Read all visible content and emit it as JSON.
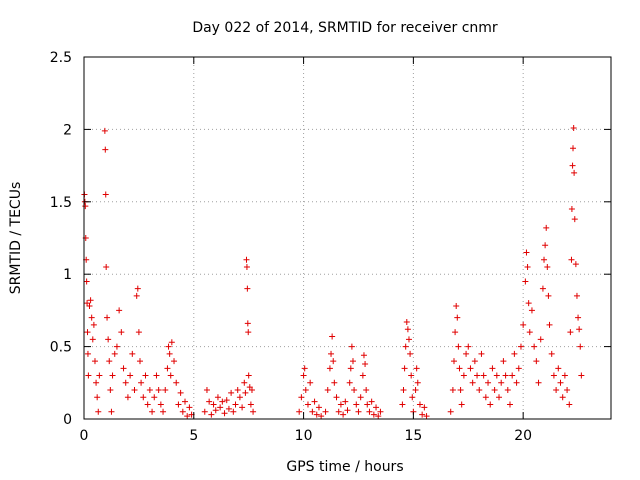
{
  "chart_data": {
    "type": "scatter",
    "title": "Day 022 of 2014, SRMTID for receiver cnmr",
    "xlabel": "GPS time / hours",
    "ylabel": "SRMTID / TECUs",
    "xlim": [
      0,
      24
    ],
    "ylim": [
      0,
      2.5
    ],
    "xticks": [
      0,
      5,
      10,
      15,
      20
    ],
    "yticks": [
      0,
      0.5,
      1,
      1.5,
      2,
      2.5
    ],
    "xtick_labels": [
      "0",
      "5",
      "10",
      "15",
      "20"
    ],
    "ytick_labels": [
      "0",
      "0.5",
      "1",
      "1.5",
      "2",
      "2.5"
    ],
    "grid": true,
    "marker": "+",
    "color": "#e00000",
    "series": [
      {
        "name": "SRMTID",
        "points": [
          [
            0.02,
            1.55
          ],
          [
            0.04,
            1.5
          ],
          [
            0.06,
            1.47
          ],
          [
            0.08,
            1.25
          ],
          [
            0.1,
            1.1
          ],
          [
            0.12,
            0.95
          ],
          [
            0.14,
            0.8
          ],
          [
            0.16,
            0.6
          ],
          [
            0.18,
            0.45
          ],
          [
            0.2,
            0.3
          ],
          [
            0.25,
            0.78
          ],
          [
            0.3,
            0.82
          ],
          [
            0.35,
            0.7
          ],
          [
            0.4,
            0.55
          ],
          [
            0.45,
            0.65
          ],
          [
            0.5,
            0.4
          ],
          [
            0.55,
            0.25
          ],
          [
            0.6,
            0.15
          ],
          [
            0.65,
            0.05
          ],
          [
            0.7,
            0.3
          ],
          [
            0.95,
            1.99
          ],
          [
            0.97,
            1.86
          ],
          [
            0.99,
            1.55
          ],
          [
            1.01,
            1.05
          ],
          [
            1.05,
            0.7
          ],
          [
            1.1,
            0.55
          ],
          [
            1.15,
            0.4
          ],
          [
            1.2,
            0.2
          ],
          [
            1.25,
            0.05
          ],
          [
            1.3,
            0.3
          ],
          [
            1.4,
            0.45
          ],
          [
            1.5,
            0.5
          ],
          [
            1.6,
            0.75
          ],
          [
            1.7,
            0.6
          ],
          [
            1.8,
            0.35
          ],
          [
            1.9,
            0.25
          ],
          [
            2.0,
            0.15
          ],
          [
            2.1,
            0.3
          ],
          [
            2.2,
            0.45
          ],
          [
            2.3,
            0.2
          ],
          [
            2.4,
            0.85
          ],
          [
            2.45,
            0.9
          ],
          [
            2.5,
            0.6
          ],
          [
            2.55,
            0.4
          ],
          [
            2.6,
            0.25
          ],
          [
            2.7,
            0.15
          ],
          [
            2.8,
            0.3
          ],
          [
            2.9,
            0.1
          ],
          [
            3.0,
            0.2
          ],
          [
            3.1,
            0.05
          ],
          [
            3.2,
            0.15
          ],
          [
            3.3,
            0.3
          ],
          [
            3.4,
            0.2
          ],
          [
            3.5,
            0.1
          ],
          [
            3.6,
            0.05
          ],
          [
            3.7,
            0.2
          ],
          [
            3.8,
            0.35
          ],
          [
            3.85,
            0.5
          ],
          [
            3.9,
            0.45
          ],
          [
            3.95,
            0.3
          ],
          [
            4.0,
            0.53
          ],
          [
            4.1,
            0.4
          ],
          [
            4.2,
            0.25
          ],
          [
            4.3,
            0.1
          ],
          [
            4.4,
            0.18
          ],
          [
            4.5,
            0.05
          ],
          [
            4.6,
            0.12
          ],
          [
            4.7,
            0.02
          ],
          [
            4.8,
            0.08
          ],
          [
            4.9,
            0.03
          ],
          [
            5.5,
            0.05
          ],
          [
            5.6,
            0.2
          ],
          [
            5.7,
            0.12
          ],
          [
            5.8,
            0.03
          ],
          [
            5.9,
            0.1
          ],
          [
            6.0,
            0.06
          ],
          [
            6.1,
            0.15
          ],
          [
            6.2,
            0.08
          ],
          [
            6.3,
            0.12
          ],
          [
            6.4,
            0.04
          ],
          [
            6.5,
            0.13
          ],
          [
            6.6,
            0.07
          ],
          [
            6.7,
            0.18
          ],
          [
            6.8,
            0.05
          ],
          [
            6.9,
            0.1
          ],
          [
            7.0,
            0.2
          ],
          [
            7.1,
            0.15
          ],
          [
            7.2,
            0.08
          ],
          [
            7.3,
            0.25
          ],
          [
            7.35,
            0.18
          ],
          [
            7.4,
            1.1
          ],
          [
            7.42,
            1.05
          ],
          [
            7.44,
            0.9
          ],
          [
            7.46,
            0.66
          ],
          [
            7.48,
            0.6
          ],
          [
            7.5,
            0.3
          ],
          [
            7.55,
            0.22
          ],
          [
            7.6,
            0.1
          ],
          [
            7.65,
            0.2
          ],
          [
            7.7,
            0.05
          ],
          [
            9.8,
            0.05
          ],
          [
            9.9,
            0.15
          ],
          [
            10.0,
            0.3
          ],
          [
            10.05,
            0.35
          ],
          [
            10.1,
            0.2
          ],
          [
            10.2,
            0.1
          ],
          [
            10.3,
            0.25
          ],
          [
            10.4,
            0.05
          ],
          [
            10.5,
            0.12
          ],
          [
            10.6,
            0.03
          ],
          [
            10.7,
            0.08
          ],
          [
            10.8,
            0.02
          ],
          [
            11.0,
            0.05
          ],
          [
            11.1,
            0.2
          ],
          [
            11.2,
            0.35
          ],
          [
            11.25,
            0.45
          ],
          [
            11.3,
            0.57
          ],
          [
            11.35,
            0.4
          ],
          [
            11.4,
            0.25
          ],
          [
            11.5,
            0.15
          ],
          [
            11.6,
            0.05
          ],
          [
            11.7,
            0.1
          ],
          [
            11.8,
            0.03
          ],
          [
            11.9,
            0.12
          ],
          [
            12.0,
            0.06
          ],
          [
            12.1,
            0.25
          ],
          [
            12.15,
            0.35
          ],
          [
            12.2,
            0.5
          ],
          [
            12.25,
            0.4
          ],
          [
            12.3,
            0.2
          ],
          [
            12.4,
            0.1
          ],
          [
            12.5,
            0.05
          ],
          [
            12.6,
            0.15
          ],
          [
            12.7,
            0.3
          ],
          [
            12.75,
            0.44
          ],
          [
            12.8,
            0.38
          ],
          [
            12.85,
            0.2
          ],
          [
            12.9,
            0.1
          ],
          [
            13.0,
            0.05
          ],
          [
            13.1,
            0.12
          ],
          [
            13.2,
            0.03
          ],
          [
            13.3,
            0.08
          ],
          [
            13.4,
            0.02
          ],
          [
            13.5,
            0.05
          ],
          [
            14.5,
            0.1
          ],
          [
            14.55,
            0.2
          ],
          [
            14.6,
            0.35
          ],
          [
            14.65,
            0.5
          ],
          [
            14.7,
            0.67
          ],
          [
            14.75,
            0.62
          ],
          [
            14.8,
            0.55
          ],
          [
            14.85,
            0.45
          ],
          [
            14.9,
            0.3
          ],
          [
            14.95,
            0.15
          ],
          [
            15.0,
            0.05
          ],
          [
            15.1,
            0.2
          ],
          [
            15.15,
            0.35
          ],
          [
            15.2,
            0.25
          ],
          [
            15.3,
            0.1
          ],
          [
            15.4,
            0.03
          ],
          [
            15.5,
            0.08
          ],
          [
            15.6,
            0.02
          ],
          [
            16.7,
            0.05
          ],
          [
            16.8,
            0.2
          ],
          [
            16.85,
            0.4
          ],
          [
            16.9,
            0.6
          ],
          [
            16.95,
            0.78
          ],
          [
            17.0,
            0.7
          ],
          [
            17.05,
            0.5
          ],
          [
            17.1,
            0.35
          ],
          [
            17.15,
            0.2
          ],
          [
            17.2,
            0.1
          ],
          [
            17.3,
            0.3
          ],
          [
            17.4,
            0.45
          ],
          [
            17.5,
            0.5
          ],
          [
            17.6,
            0.35
          ],
          [
            17.7,
            0.25
          ],
          [
            17.8,
            0.4
          ],
          [
            17.9,
            0.3
          ],
          [
            18.0,
            0.2
          ],
          [
            18.1,
            0.45
          ],
          [
            18.2,
            0.3
          ],
          [
            18.3,
            0.15
          ],
          [
            18.4,
            0.25
          ],
          [
            18.5,
            0.1
          ],
          [
            18.6,
            0.35
          ],
          [
            18.7,
            0.2
          ],
          [
            18.8,
            0.3
          ],
          [
            18.9,
            0.15
          ],
          [
            19.0,
            0.25
          ],
          [
            19.1,
            0.4
          ],
          [
            19.2,
            0.3
          ],
          [
            19.3,
            0.2
          ],
          [
            19.4,
            0.1
          ],
          [
            19.5,
            0.3
          ],
          [
            19.6,
            0.45
          ],
          [
            19.7,
            0.25
          ],
          [
            19.8,
            0.35
          ],
          [
            19.9,
            0.5
          ],
          [
            20.0,
            0.65
          ],
          [
            20.1,
            0.95
          ],
          [
            20.15,
            1.15
          ],
          [
            20.2,
            1.05
          ],
          [
            20.25,
            0.8
          ],
          [
            20.3,
            0.6
          ],
          [
            20.4,
            0.75
          ],
          [
            20.5,
            0.5
          ],
          [
            20.6,
            0.4
          ],
          [
            20.7,
            0.25
          ],
          [
            20.8,
            0.55
          ],
          [
            20.9,
            0.9
          ],
          [
            20.95,
            1.1
          ],
          [
            21.0,
            1.2
          ],
          [
            21.05,
            1.32
          ],
          [
            21.1,
            1.05
          ],
          [
            21.15,
            0.85
          ],
          [
            21.2,
            0.65
          ],
          [
            21.3,
            0.45
          ],
          [
            21.4,
            0.3
          ],
          [
            21.5,
            0.2
          ],
          [
            21.6,
            0.35
          ],
          [
            21.7,
            0.25
          ],
          [
            21.8,
            0.15
          ],
          [
            21.9,
            0.3
          ],
          [
            22.0,
            0.2
          ],
          [
            22.1,
            0.1
          ],
          [
            22.15,
            0.6
          ],
          [
            22.2,
            1.1
          ],
          [
            22.22,
            1.45
          ],
          [
            22.25,
            1.75
          ],
          [
            22.27,
            1.87
          ],
          [
            22.3,
            2.01
          ],
          [
            22.32,
            1.7
          ],
          [
            22.35,
            1.38
          ],
          [
            22.4,
            1.07
          ],
          [
            22.45,
            0.85
          ],
          [
            22.5,
            0.7
          ],
          [
            22.55,
            0.62
          ],
          [
            22.6,
            0.5
          ],
          [
            22.65,
            0.3
          ]
        ]
      }
    ]
  }
}
